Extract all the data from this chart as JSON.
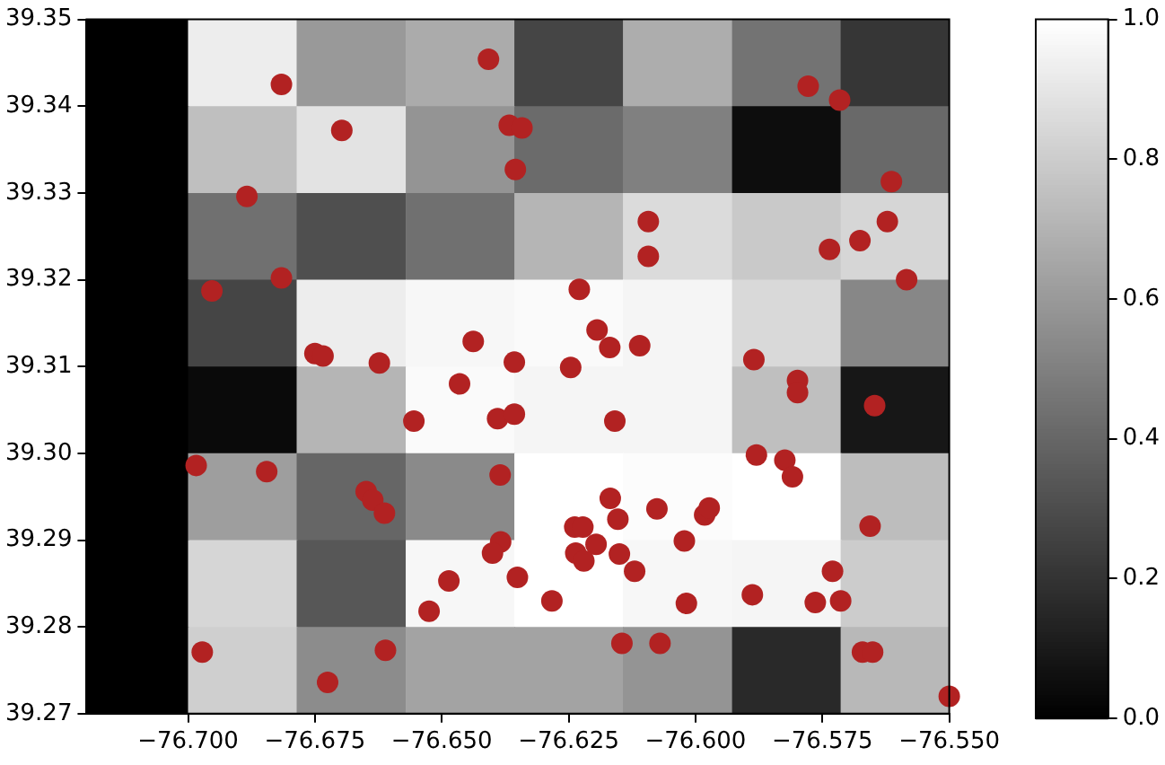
{
  "chart_data": {
    "type": "heatmap",
    "x": [
      -76.7107,
      -76.6893,
      -76.6679,
      -76.6464,
      -76.625,
      -76.6036,
      -76.5821,
      -76.5607
    ],
    "cells": [
      [
        0,
        0.93,
        0.6,
        0.67,
        0.27,
        0.68,
        0.45,
        0.21
      ],
      [
        0,
        0.75,
        0.89,
        0.58,
        0.42,
        0.5,
        0.05,
        0.41
      ],
      [
        0,
        0.44,
        0.31,
        0.44,
        0.71,
        0.86,
        0.79,
        0.84
      ],
      [
        0,
        0.27,
        0.93,
        0.97,
        0.98,
        0.96,
        0.85,
        0.53
      ],
      [
        0,
        0.04,
        0.71,
        0.98,
        0.96,
        0.96,
        0.75,
        0.09
      ],
      [
        0,
        0.62,
        0.4,
        0.54,
        1.0,
        0.99,
        1.0,
        0.74
      ],
      [
        0,
        0.84,
        0.34,
        0.97,
        1.0,
        0.97,
        0.96,
        0.8
      ],
      [
        0,
        0.81,
        0.55,
        0.64,
        0.64,
        0.58,
        0.16,
        0.72
      ]
    ],
    "clim": [
      0,
      1
    ],
    "cticks": [
      {
        "value": 0,
        "label": "0.0"
      },
      {
        "value": 0.2,
        "label": "0.2"
      },
      {
        "value": 0.4,
        "label": "0.4"
      },
      {
        "value": 0.6,
        "label": "0.6"
      },
      {
        "value": 0.8,
        "label": "0.8"
      },
      {
        "value": 1,
        "label": "1.0"
      }
    ],
    "xlim": [
      -76.72,
      -76.55
    ],
    "xticks": [
      {
        "value": -76.7,
        "label": "−76.700"
      },
      {
        "value": -76.675,
        "label": "−76.675"
      },
      {
        "value": -76.65,
        "label": "−76.650"
      },
      {
        "value": -76.625,
        "label": "−76.625"
      },
      {
        "value": -76.6,
        "label": "−76.600"
      },
      {
        "value": -76.575,
        "label": "−76.575"
      },
      {
        "value": -76.55,
        "label": "−76.550"
      }
    ],
    "ylim": [
      39.27,
      39.35
    ],
    "yticks": [
      39.27,
      39.28,
      39.29,
      {
        "value": 39.3,
        "label": "39.30"
      },
      39.31,
      39.32,
      39.33,
      39.34,
      39.35
    ],
    "grid": false,
    "legend": false,
    "marker": "circle",
    "series": [
      {
        "type": "scatter",
        "color": "#b22222",
        "x": [
          -76.6816,
          -76.6408,
          -76.6697,
          -76.6367,
          -76.6342,
          -76.6355,
          -76.6884,
          -76.6816,
          -76.6953,
          -76.6438,
          -76.675,
          -76.6734,
          -76.6623,
          -76.6357,
          -76.5778,
          -76.5716,
          -76.5614,
          -76.6093,
          -76.6093,
          -76.5622,
          -76.5676,
          -76.5736,
          -76.5584,
          -76.6229,
          -76.6194,
          -76.6169,
          -76.611,
          -76.6246,
          -76.5885,
          -76.6465,
          -76.6555,
          -76.639,
          -76.6357,
          -76.5799,
          -76.5799,
          -76.5647,
          -76.6159,
          -76.588,
          -76.5824,
          -76.5809,
          -76.6984,
          -76.6845,
          -76.6385,
          -76.6649,
          -76.6636,
          -76.6613,
          -76.6168,
          -76.6153,
          -76.6076,
          -76.5982,
          -76.5973,
          -76.6238,
          -76.6222,
          -76.5656,
          -76.6384,
          -76.64,
          -76.6196,
          -76.6236,
          -76.622,
          -76.615,
          -76.6022,
          -76.612,
          -76.6351,
          -76.6486,
          -76.6525,
          -76.6283,
          -76.6018,
          -76.5888,
          -76.573,
          -76.5764,
          -76.5714,
          -76.6145,
          -76.607,
          -76.5671,
          -76.5651,
          -76.6972,
          -76.6611,
          -76.6725,
          -76.55
        ],
        "values": [
          39.3425,
          39.3454,
          39.3372,
          39.3378,
          39.3375,
          39.3327,
          39.3296,
          39.3202,
          39.3187,
          39.3129,
          39.3115,
          39.3112,
          39.3104,
          39.3105,
          39.3423,
          39.3407,
          39.3313,
          39.3267,
          39.3227,
          39.3267,
          39.3245,
          39.3235,
          39.32,
          39.3189,
          39.3142,
          39.3122,
          39.3124,
          39.3099,
          39.3108,
          39.308,
          39.3037,
          39.304,
          39.3045,
          39.3084,
          39.307,
          39.3055,
          39.3037,
          39.2998,
          39.2992,
          39.2973,
          39.2986,
          39.2979,
          39.2975,
          39.2956,
          39.2946,
          39.2931,
          39.2948,
          39.2924,
          39.2936,
          39.2929,
          39.2937,
          39.2915,
          39.2915,
          39.2916,
          39.2898,
          39.2885,
          39.2895,
          39.2885,
          39.2876,
          39.2884,
          39.2899,
          39.2864,
          39.2857,
          39.2853,
          39.2818,
          39.283,
          39.2827,
          39.2837,
          39.2864,
          39.2828,
          39.283,
          39.2781,
          39.2781,
          39.2771,
          39.2771,
          39.2771,
          39.2773,
          39.2736,
          39.272
        ]
      }
    ]
  }
}
